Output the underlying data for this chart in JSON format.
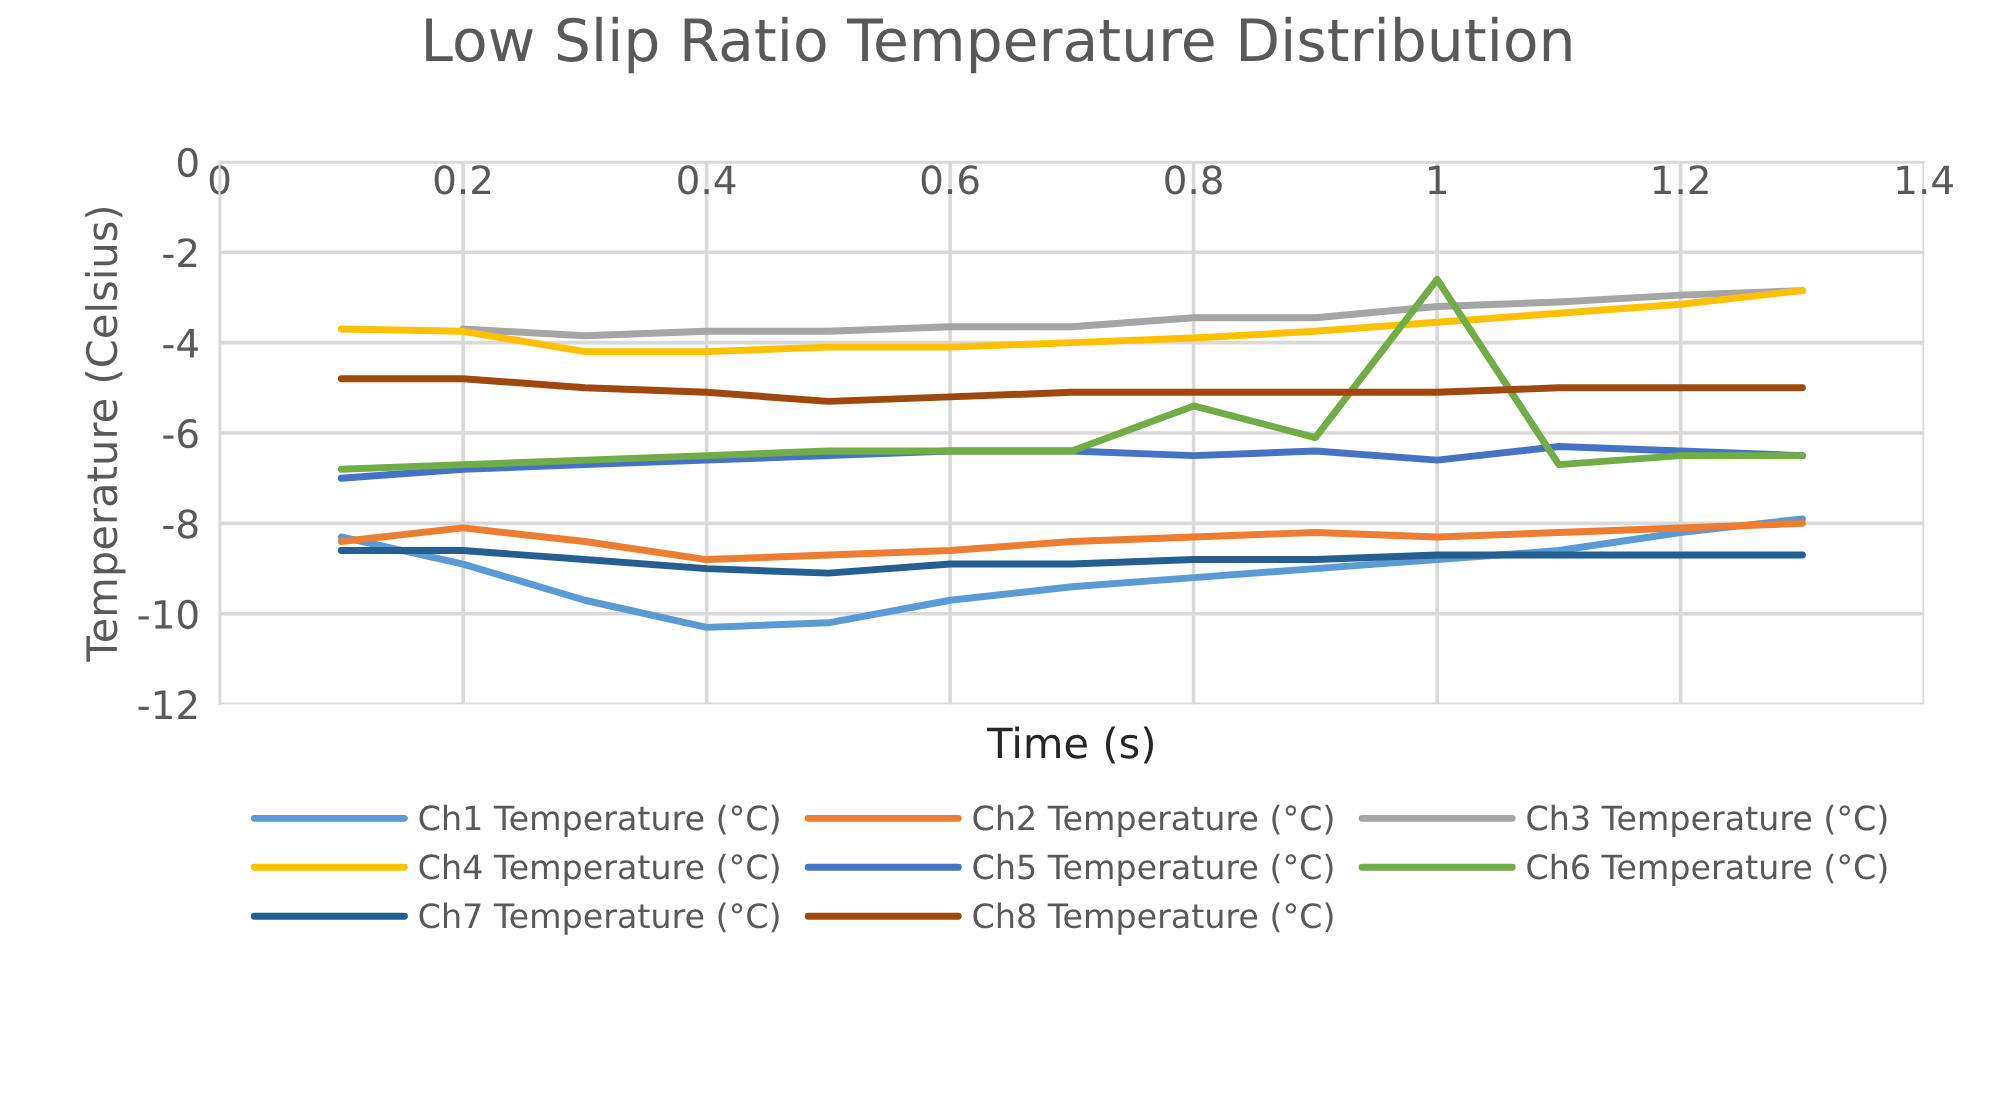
{
  "chart_data": {
    "type": "line",
    "title": "Low Slip Ratio Temperature Distribution",
    "xlabel": "Time (s)",
    "ylabel": "Temperature (Celsius)",
    "x": [
      0.1,
      0.2,
      0.3,
      0.4,
      0.5,
      0.6,
      0.7,
      0.8,
      0.9,
      1.0,
      1.1,
      1.2,
      1.3
    ],
    "series": [
      {
        "name": "Ch1 Temperature (°C)",
        "color": "#5b9bd5",
        "values": [
          -8.3,
          -8.9,
          -9.7,
          -10.3,
          -10.2,
          -9.7,
          -9.4,
          -9.2,
          -9.0,
          -8.8,
          -8.6,
          -8.2,
          -7.9
        ]
      },
      {
        "name": "Ch2 Temperature (°C)",
        "color": "#ed7d31",
        "values": [
          -8.4,
          -8.1,
          -8.4,
          -8.8,
          -8.7,
          -8.6,
          -8.4,
          -8.3,
          -8.2,
          -8.3,
          -8.2,
          -8.1,
          -8.0
        ]
      },
      {
        "name": "Ch3 Temperature (°C)",
        "color": "#a5a5a5",
        "values": [
          null,
          -3.7,
          -3.85,
          -3.75,
          -3.75,
          -3.65,
          -3.65,
          -3.45,
          -3.45,
          -3.2,
          -3.1,
          -2.95,
          -2.85
        ]
      },
      {
        "name": "Ch4 Temperature (°C)",
        "color": "#ffc000",
        "values": [
          -3.7,
          -3.75,
          -4.2,
          -4.2,
          -4.1,
          -4.1,
          -4.0,
          -3.9,
          -3.75,
          -3.55,
          -3.35,
          -3.15,
          -2.85
        ]
      },
      {
        "name": "Ch5 Temperature (°C)",
        "color": "#4472c4",
        "values": [
          -7.0,
          -6.8,
          -6.7,
          -6.6,
          -6.5,
          -6.4,
          -6.4,
          -6.5,
          -6.4,
          -6.6,
          -6.3,
          -6.4,
          -6.5
        ]
      },
      {
        "name": "Ch6 Temperature (°C)",
        "color": "#70ad47",
        "values": [
          -6.8,
          -6.7,
          -6.6,
          -6.5,
          -6.4,
          -6.4,
          -6.4,
          -5.4,
          -6.1,
          -2.6,
          -6.7,
          -6.5,
          -6.5
        ]
      },
      {
        "name": "Ch7 Temperature (°C)",
        "color": "#255e91",
        "values": [
          -8.6,
          -8.6,
          -8.8,
          -9.0,
          -9.1,
          -8.9,
          -8.9,
          -8.8,
          -8.8,
          -8.7,
          -8.7,
          -8.7,
          -8.7
        ]
      },
      {
        "name": "Ch8 Temperature (°C)",
        "color": "#9e480e",
        "values": [
          -4.8,
          -4.8,
          -5.0,
          -5.1,
          -5.3,
          -5.2,
          -5.1,
          -5.1,
          -5.1,
          -5.1,
          -5.0,
          -5.0,
          -5.0
        ]
      }
    ],
    "xlim": [
      0,
      1.4
    ],
    "xticks": [
      0,
      0.2,
      0.4,
      0.6,
      0.8,
      1,
      1.2,
      1.4
    ],
    "ylim": [
      -12,
      0
    ],
    "yticks": [
      0,
      -2,
      -4,
      -6,
      -8,
      -10,
      -12
    ],
    "grid": true,
    "legend": "bottom",
    "marker": "none",
    "line_style": "solid"
  }
}
